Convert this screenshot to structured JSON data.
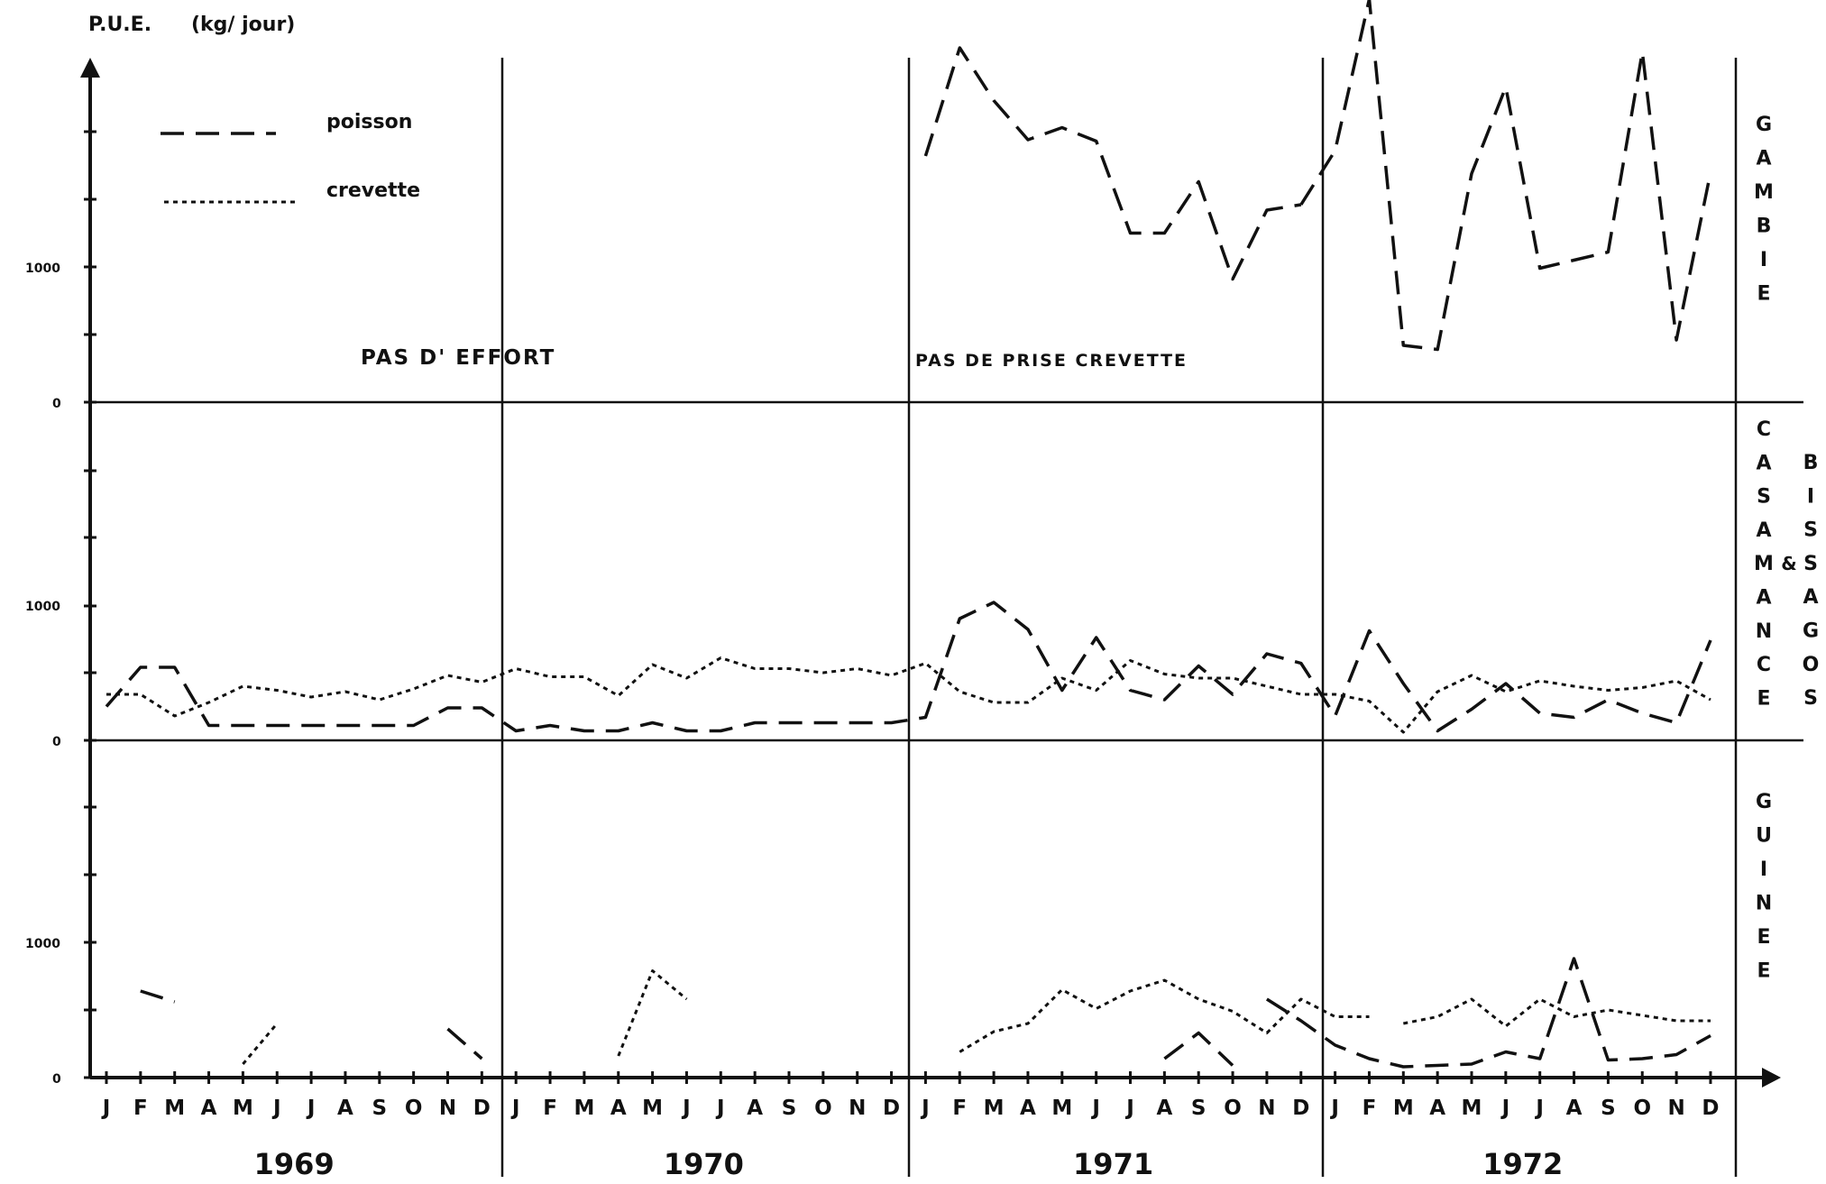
{
  "chart_data": {
    "type": "line",
    "ylabel": "P.U.E.",
    "yunit": "(kg/ jour)",
    "years": [
      "1969",
      "1970",
      "1971",
      "1972"
    ],
    "month_letters": [
      "J",
      "F",
      "M",
      "A",
      "M",
      "J",
      "J",
      "A",
      "S",
      "O",
      "N",
      "D"
    ],
    "y_tick_labels": {
      "zero": "0",
      "thousand": "1000"
    },
    "legend": {
      "poisson": "poisson",
      "crevette": "crevette"
    },
    "panels": [
      {
        "id": "gambie",
        "name_letters": [
          "G",
          "A",
          "M",
          "B",
          "I",
          "E"
        ],
        "annotations": [
          "PAS D' EFFORT",
          "PAS DE PRISE CREVETTE"
        ],
        "ylim": [
          0,
          2000
        ],
        "poisson": [
          {
            "start": 24,
            "values": [
              1820,
              2620,
              2230,
              1940,
              2030,
              1930,
              1250,
              1250,
              1630,
              910,
              1420,
              1460
            ]
          },
          {
            "start": 35,
            "values": [
              1460,
              1860,
              2980,
              420,
              390,
              1690,
              2330,
              990,
              1050,
              1110,
              2590,
              460,
              1700
            ]
          }
        ],
        "crevette": []
      },
      {
        "id": "casamance",
        "name_letters": [
          "C",
          "A",
          "S",
          "A",
          "M",
          "A",
          "N",
          "C",
          "E"
        ],
        "name2_letters": [
          "B",
          "I",
          "S",
          "S",
          "A",
          "G",
          "O",
          "S"
        ],
        "name_join": "&",
        "ylim": [
          0,
          2000
        ],
        "poisson": [
          {
            "start": 0,
            "values": [
              250,
              540,
              540,
              110,
              110,
              110,
              110,
              110,
              110,
              110,
              240,
              240,
              70,
              110,
              70,
              70,
              130,
              70,
              70,
              130,
              130,
              130,
              130,
              130,
              170,
              900,
              1020,
              820,
              370,
              760,
              370,
              300,
              550,
              340,
              640,
              570,
              180,
              810,
              420,
              70,
              230,
              420,
              200,
              170,
              300,
              200,
              130,
              740
            ]
          }
        ],
        "crevette": [
          {
            "start": 0,
            "values": [
              340,
              340,
              180,
              280,
              400,
              370,
              320,
              360,
              300,
              380,
              480,
              430,
              530,
              470,
              470,
              330,
              560,
              460,
              610,
              530,
              530,
              500,
              530,
              480,
              570,
              360,
              280,
              280,
              460,
              370,
              590,
              490,
              460,
              460,
              400,
              340,
              340,
              290,
              60,
              360,
              480,
              360,
              440,
              400,
              370,
              390,
              440,
              300
            ]
          }
        ]
      },
      {
        "id": "guinee",
        "name_letters": [
          "G",
          "U",
          "I",
          "N",
          "E",
          "E"
        ],
        "ylim": [
          0,
          2000
        ],
        "poisson": [
          {
            "start": 1,
            "values": [
              640,
              560
            ]
          },
          {
            "start": 10,
            "values": [
              360,
              140
            ]
          },
          {
            "start": 31,
            "values": [
              140,
              330,
              90
            ]
          },
          {
            "start": 34,
            "values": [
              580,
              420,
              240,
              140,
              80,
              90,
              100,
              190,
              140,
              880,
              130,
              140,
              170,
              310
            ]
          }
        ],
        "crevette": [
          {
            "start": 4,
            "values": [
              100,
              400
            ]
          },
          {
            "start": 15,
            "values": [
              160,
              790,
              580
            ]
          },
          {
            "start": 25,
            "values": [
              190,
              340,
              400,
              650,
              510,
              640,
              720,
              580,
              490,
              330,
              580,
              450,
              450
            ]
          },
          {
            "start": 38,
            "values": [
              400,
              450,
              580,
              380,
              580,
              450,
              500,
              460,
              420,
              420
            ]
          }
        ]
      }
    ]
  }
}
